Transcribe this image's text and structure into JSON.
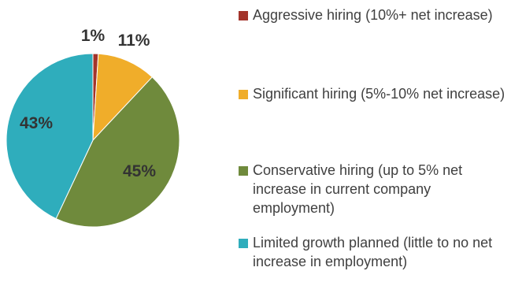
{
  "chart_data": {
    "type": "pie",
    "categories": [
      "Aggressive hiring (10%+ net increase)",
      "Significant hiring (5%-10% net increase)",
      "Conservative hiring (up to 5% net increase in current company employment)",
      "Limited growth planned (little to no net increase in employment)"
    ],
    "values": [
      1,
      11,
      45,
      43
    ],
    "data_labels": [
      "1%",
      "11%",
      "45%",
      "43%"
    ],
    "colors": [
      "#a3342b",
      "#f0ad2a",
      "#6f8a3c",
      "#2fadbc"
    ],
    "legend_placement": "right"
  }
}
